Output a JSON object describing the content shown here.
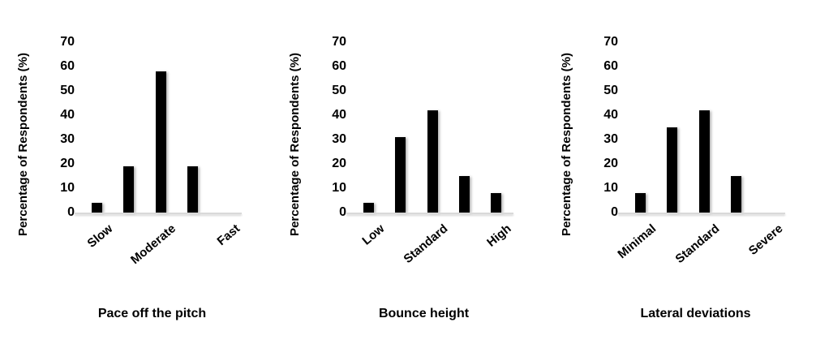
{
  "figure": {
    "background_color": "#ffffff",
    "description": "Three single-series bar charts of survey responses"
  },
  "styles": {
    "bar_color": "#000000",
    "axis_line_color": "#d9d9d9",
    "text_color": "#000000"
  },
  "chart_data": [
    {
      "type": "bar",
      "title": "Pace off the pitch",
      "ylabel": "Percentage of Respondents (%)",
      "xlabel": "",
      "ylim": [
        0,
        70
      ],
      "yticks": [
        0,
        10,
        20,
        30,
        40,
        50,
        60,
        70
      ],
      "grid": false,
      "legend": false,
      "categories": [
        "Slow",
        "",
        "Moderate",
        "",
        "Fast"
      ],
      "values": [
        4,
        19,
        58,
        19,
        0
      ],
      "bar_color": "#000000"
    },
    {
      "type": "bar",
      "title": "Bounce height",
      "ylabel": "Percentage of Respondents (%)",
      "xlabel": "",
      "ylim": [
        0,
        70
      ],
      "yticks": [
        0,
        10,
        20,
        30,
        40,
        50,
        60,
        70
      ],
      "grid": false,
      "legend": false,
      "categories": [
        "Low",
        "",
        "Standard",
        "",
        "High"
      ],
      "values": [
        4,
        31,
        42,
        15,
        8
      ],
      "bar_color": "#000000"
    },
    {
      "type": "bar",
      "title": "Lateral deviations",
      "ylabel": "Percentage of Respondents (%)",
      "xlabel": "",
      "ylim": [
        0,
        70
      ],
      "yticks": [
        0,
        10,
        20,
        30,
        40,
        50,
        60,
        70
      ],
      "grid": false,
      "legend": false,
      "categories": [
        "Minimal",
        "",
        "Standard",
        "",
        "Severe"
      ],
      "values": [
        8,
        35,
        42,
        15,
        0
      ],
      "bar_color": "#000000"
    }
  ]
}
